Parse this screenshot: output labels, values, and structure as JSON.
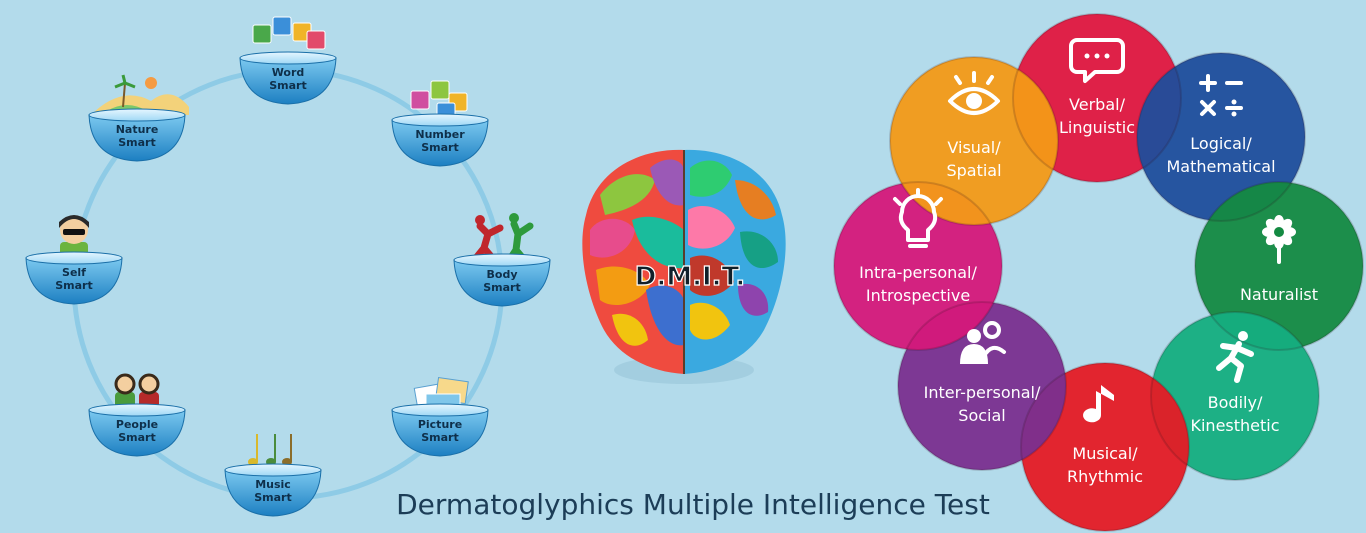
{
  "caption": "Dermatoglyphics Multiple Intelligence Test",
  "brain_label": "D.M.I.T.",
  "ring_items": [
    {
      "line1": "Word",
      "line2": "Smart",
      "icon": "letter-blocks-icon"
    },
    {
      "line1": "Number",
      "line2": "Smart",
      "icon": "number-blocks-icon"
    },
    {
      "line1": "Body",
      "line2": "Smart",
      "icon": "dancing-figures-icon"
    },
    {
      "line1": "Picture",
      "line2": "Smart",
      "icon": "photos-icon"
    },
    {
      "line1": "Music",
      "line2": "Smart",
      "icon": "music-notes-icon"
    },
    {
      "line1": "People",
      "line2": "Smart",
      "icon": "two-people-icon"
    },
    {
      "line1": "Self",
      "line2": "Smart",
      "icon": "person-sunglasses-icon"
    },
    {
      "line1": "Nature",
      "line2": "Smart",
      "icon": "landscape-icon"
    }
  ],
  "circles": [
    {
      "lines": [
        "Verbal/",
        "Linguistic"
      ],
      "color": "#e2173f",
      "icon": "speech-bubble-icon"
    },
    {
      "lines": [
        "Logical/",
        "Mathematical"
      ],
      "color": "#1f4e9c",
      "icon": "math-symbols-icon"
    },
    {
      "lines": [
        "Naturalist"
      ],
      "color": "#148a42",
      "icon": "flower-icon"
    },
    {
      "lines": [
        "Bodily/",
        "Kinesthetic"
      ],
      "color": "#15ae7f",
      "icon": "running-person-icon"
    },
    {
      "lines": [
        "Musical/",
        "Rhythmic"
      ],
      "color": "#e51b25",
      "icon": "music-note-icon"
    },
    {
      "lines": [
        "Inter-personal/",
        "Social"
      ],
      "color": "#7a2f8f",
      "icon": "people-icon"
    },
    {
      "lines": [
        "Intra-personal/",
        "Introspective"
      ],
      "color": "#d5187a",
      "icon": "lightbulb-icon"
    },
    {
      "lines": [
        "Visual/",
        "Spatial"
      ],
      "color": "#f39a17",
      "icon": "eye-icon"
    }
  ]
}
